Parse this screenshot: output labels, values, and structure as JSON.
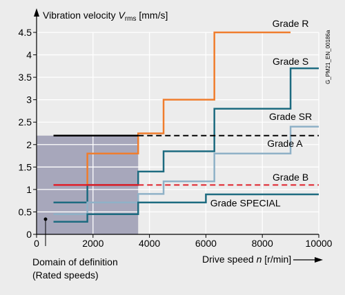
{
  "chart_data": {
    "type": "line",
    "title": "",
    "ylabel": {
      "prefix": "Vibration velocity ",
      "symbol": "V",
      "subscript": "rms",
      "unit": " [mm/s]"
    },
    "xlabel": {
      "prefix": "Drive speed ",
      "symbol": "n",
      "unit": " [r/min]"
    },
    "xlim": [
      0,
      10000
    ],
    "ylim": [
      0,
      4.5
    ],
    "x_ticks": [
      0,
      2000,
      4000,
      6000,
      8000,
      10000
    ],
    "y_ticks": [
      0,
      0.5,
      1,
      1.5,
      2,
      2.5,
      3,
      3.5,
      4,
      4.5
    ],
    "y_tick_labels": [
      "0",
      "0.5",
      "1",
      "1.5",
      "2",
      "2.5",
      "3",
      "3.5",
      "4",
      "4.5"
    ],
    "grid": true,
    "domain_of_definition": {
      "x": [
        0,
        3600
      ],
      "y": [
        0,
        2.2
      ],
      "label_lines": [
        "Domain of definition",
        "(Rated speeds)"
      ],
      "color": "#a7a7bb"
    },
    "figure_id": "G_PM21_EN_00186a",
    "series": [
      {
        "name": "Grade R",
        "color": "#f07d2d",
        "style": "solid",
        "label_at": [
          9000,
          4.62
        ],
        "points": [
          [
            1800,
            1.1
          ],
          [
            1800,
            1.8
          ],
          [
            3600,
            1.8
          ],
          [
            3600,
            2.25
          ],
          [
            4500,
            2.25
          ],
          [
            4500,
            3.0
          ],
          [
            6300,
            3.0
          ],
          [
            6300,
            4.5
          ],
          [
            9000,
            4.5
          ]
        ]
      },
      {
        "name": "Grade S",
        "color": "#1d6b80",
        "style": "solid",
        "label_at": [
          9000,
          3.78
        ],
        "points": [
          [
            600,
            0.71
          ],
          [
            1800,
            0.71
          ],
          [
            1800,
            1.1
          ],
          [
            3600,
            1.1
          ],
          [
            3600,
            1.4
          ],
          [
            4500,
            1.4
          ],
          [
            4500,
            1.85
          ],
          [
            6300,
            1.85
          ],
          [
            6300,
            2.8
          ],
          [
            9000,
            2.8
          ],
          [
            9000,
            3.7
          ],
          [
            10000,
            3.7
          ]
        ]
      },
      {
        "name": "Grade SR",
        "color": "#8fb1c7",
        "style": "solid",
        "label_at": [
          9000,
          2.55
        ],
        "points": [
          [
            600,
            0.45
          ],
          [
            1800,
            0.45
          ],
          [
            1800,
            0.71
          ],
          [
            3600,
            0.71
          ],
          [
            3600,
            0.9
          ],
          [
            4500,
            0.9
          ],
          [
            4500,
            1.18
          ],
          [
            6300,
            1.18
          ],
          [
            6300,
            1.8
          ],
          [
            9000,
            1.8
          ],
          [
            9000,
            2.4
          ],
          [
            10000,
            2.4
          ]
        ]
      },
      {
        "name": "Grade A",
        "color": "#000000",
        "style": "dashed",
        "label_at": [
          8800,
          1.95
        ],
        "points": [
          [
            600,
            2.2
          ],
          [
            3600,
            2.2
          ],
          [
            10000,
            2.2
          ]
        ],
        "solid_until": 3600
      },
      {
        "name": "Grade B",
        "color": "#e0202a",
        "style": "dashed",
        "label_at": [
          9000,
          1.2
        ],
        "points": [
          [
            600,
            1.1
          ],
          [
            3600,
            1.1
          ],
          [
            10000,
            1.1
          ]
        ],
        "solid_until": 3600
      },
      {
        "name": "Grade SPECIAL",
        "color": "#1d6b80",
        "style": "solid",
        "label_at": [
          7400,
          0.62
        ],
        "points": [
          [
            600,
            0.28
          ],
          [
            1800,
            0.28
          ],
          [
            1800,
            0.45
          ],
          [
            3600,
            0.45
          ],
          [
            3600,
            0.71
          ],
          [
            6000,
            0.71
          ],
          [
            6000,
            0.89
          ],
          [
            10000,
            0.89
          ]
        ]
      }
    ]
  }
}
